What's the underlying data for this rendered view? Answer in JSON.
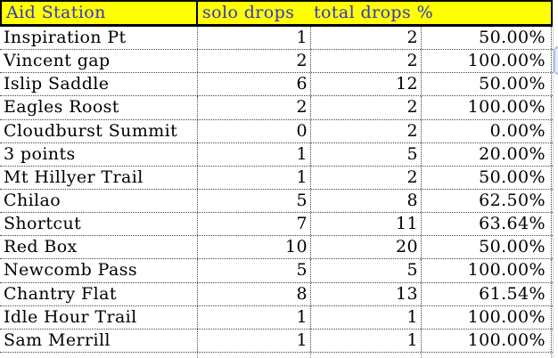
{
  "header": {
    "cells": [
      {
        "label": "Aid Station"
      },
      {
        "label": "solo drops"
      },
      {
        "label": "total drops %"
      }
    ]
  },
  "table": {
    "columns": [
      "Aid Station",
      "solo drops",
      "total drops",
      "%"
    ],
    "rows": [
      {
        "station": "Inspiration Pt",
        "solo_drops": "1",
        "total_drops": "2",
        "percent": "50.00%"
      },
      {
        "station": "Vincent gap",
        "solo_drops": "2",
        "total_drops": "2",
        "percent": "100.00%"
      },
      {
        "station": "Islip Saddle",
        "solo_drops": "6",
        "total_drops": "12",
        "percent": "50.00%"
      },
      {
        "station": "Eagles Roost",
        "solo_drops": "2",
        "total_drops": "2",
        "percent": "100.00%"
      },
      {
        "station": "Cloudburst Summit",
        "solo_drops": "0",
        "total_drops": "2",
        "percent": "0.00%"
      },
      {
        "station": "3 points",
        "solo_drops": "1",
        "total_drops": "5",
        "percent": "20.00%"
      },
      {
        "station": "Mt Hillyer Trail",
        "solo_drops": "1",
        "total_drops": "2",
        "percent": "50.00%"
      },
      {
        "station": "Chilao",
        "solo_drops": "5",
        "total_drops": "8",
        "percent": "62.50%"
      },
      {
        "station": "Shortcut",
        "solo_drops": "7",
        "total_drops": "11",
        "percent": "63.64%"
      },
      {
        "station": "Red Box",
        "solo_drops": "10",
        "total_drops": "20",
        "percent": "50.00%"
      },
      {
        "station": "Newcomb Pass",
        "solo_drops": "5",
        "total_drops": "5",
        "percent": "100.00%"
      },
      {
        "station": "Chantry Flat",
        "solo_drops": "8",
        "total_drops": "13",
        "percent": "61.54%"
      },
      {
        "station": "Idle Hour Trail",
        "solo_drops": "1",
        "total_drops": "1",
        "percent": "100.00%"
      },
      {
        "station": "Sam Merrill",
        "solo_drops": "1",
        "total_drops": "1",
        "percent": "100.00%"
      }
    ]
  },
  "colors": {
    "header_bg": "#FFFF00",
    "header_text": "#3333CC",
    "grid_dots": "#454545",
    "scrollbar_thumb_border": "#A8C3E6",
    "scrollbar_thumb_fill": "#E6EEFA"
  }
}
